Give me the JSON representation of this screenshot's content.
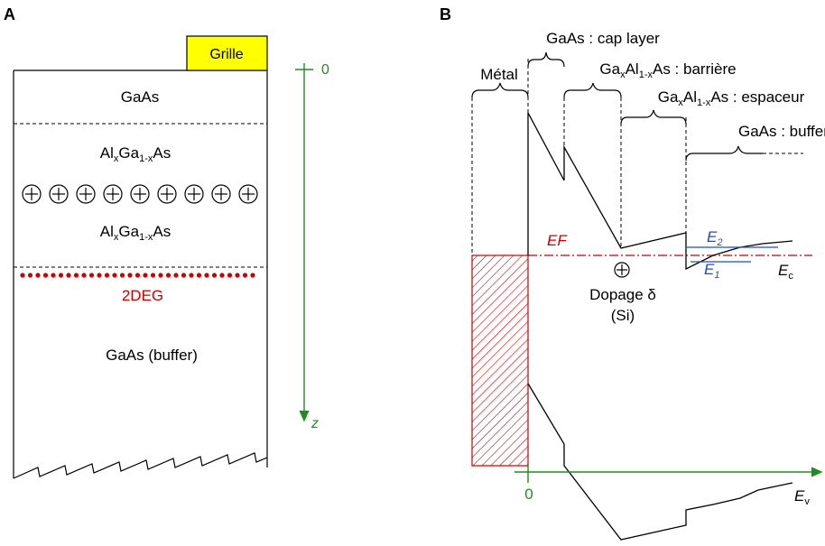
{
  "panel_a": {
    "panel_label": "A",
    "gate_label": "Grille",
    "layer_top": "GaAs",
    "layer_algaas_1": "AlxGa1-xAs",
    "layer_algaas_2": "AlxGa1-xAs",
    "donor_count": 9,
    "two_deg_label": "2DEG",
    "layer_buffer": "GaAs (buffer)",
    "axis_zero": "0",
    "axis_z": "z"
  },
  "panel_b": {
    "panel_label": "B",
    "metal_label": "Métal",
    "cap_label": "GaAs : cap layer",
    "barrier_label": "GaxAl1-xAs : barrière",
    "spacer_label": "GaxAl1-xAs : espaceur",
    "buffer_label": "GaAs : buffer",
    "fermi_label": "EF",
    "e2_label": "E2",
    "e1_label": "E1",
    "ec_label": "Ec",
    "ev_label": "Ev",
    "doping_label": "Dopage δ",
    "doping_sub": "(Si)",
    "origin_label": "0"
  },
  "colors": {
    "gate_fill": "#ffff00",
    "fermi": "#cc0000",
    "axis": "#228b22",
    "levels": "#1f4fbf",
    "hatch": "#cc0000"
  }
}
